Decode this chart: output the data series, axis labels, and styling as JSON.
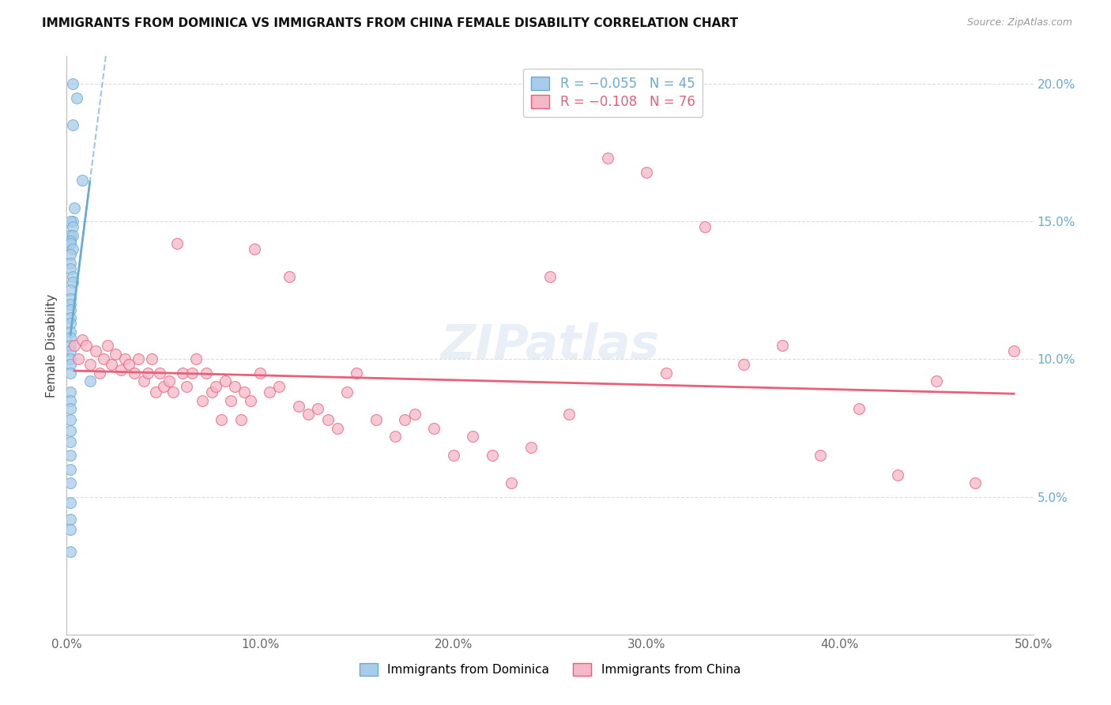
{
  "title": "IMMIGRANTS FROM DOMINICA VS IMMIGRANTS FROM CHINA FEMALE DISABILITY CORRELATION CHART",
  "source": "Source: ZipAtlas.com",
  "ylabel": "Female Disability",
  "xlim": [
    0.0,
    0.5
  ],
  "ylim": [
    0.0,
    0.21
  ],
  "xticks": [
    0.0,
    0.1,
    0.2,
    0.3,
    0.4,
    0.5
  ],
  "yticks": [
    0.05,
    0.1,
    0.15,
    0.2
  ],
  "xticklabels": [
    "0.0%",
    "10.0%",
    "20.0%",
    "30.0%",
    "40.0%",
    "50.0%"
  ],
  "yticklabels_right": [
    "5.0%",
    "10.0%",
    "15.0%",
    "20.0%"
  ],
  "legend_r1": "R = −0.055",
  "legend_n1": "N = 45",
  "legend_r2": "R = −0.108",
  "legend_n2": "N = 76",
  "color_dominica": "#a8ccea",
  "color_china": "#f4b8c8",
  "trendline_color_dominica": "#6aaad4",
  "trendline_color_china": "#e8607a",
  "background_color": "#ffffff",
  "grid_color": "#d8d8d8",
  "dominica_x": [
    0.003,
    0.005,
    0.003,
    0.008,
    0.004,
    0.003,
    0.002,
    0.003,
    0.002,
    0.003,
    0.002,
    0.002,
    0.003,
    0.002,
    0.002,
    0.002,
    0.003,
    0.003,
    0.002,
    0.002,
    0.002,
    0.002,
    0.002,
    0.002,
    0.002,
    0.002,
    0.002,
    0.002,
    0.002,
    0.002,
    0.002,
    0.012,
    0.002,
    0.002,
    0.002,
    0.002,
    0.002,
    0.002,
    0.002,
    0.002,
    0.002,
    0.002,
    0.002,
    0.002,
    0.002
  ],
  "dominica_y": [
    0.2,
    0.195,
    0.185,
    0.165,
    0.155,
    0.15,
    0.15,
    0.148,
    0.145,
    0.145,
    0.143,
    0.142,
    0.14,
    0.138,
    0.135,
    0.133,
    0.13,
    0.128,
    0.125,
    0.122,
    0.12,
    0.118,
    0.115,
    0.113,
    0.11,
    0.108,
    0.105,
    0.103,
    0.1,
    0.098,
    0.095,
    0.092,
    0.088,
    0.085,
    0.082,
    0.078,
    0.074,
    0.07,
    0.065,
    0.06,
    0.055,
    0.048,
    0.042,
    0.038,
    0.03
  ],
  "china_x": [
    0.004,
    0.006,
    0.008,
    0.01,
    0.012,
    0.015,
    0.017,
    0.019,
    0.021,
    0.023,
    0.025,
    0.028,
    0.03,
    0.032,
    0.035,
    0.037,
    0.04,
    0.042,
    0.044,
    0.046,
    0.048,
    0.05,
    0.053,
    0.055,
    0.057,
    0.06,
    0.062,
    0.065,
    0.067,
    0.07,
    0.072,
    0.075,
    0.077,
    0.08,
    0.082,
    0.085,
    0.087,
    0.09,
    0.092,
    0.095,
    0.097,
    0.1,
    0.105,
    0.11,
    0.115,
    0.12,
    0.125,
    0.13,
    0.135,
    0.14,
    0.145,
    0.15,
    0.16,
    0.17,
    0.175,
    0.18,
    0.19,
    0.2,
    0.21,
    0.22,
    0.23,
    0.24,
    0.25,
    0.26,
    0.28,
    0.3,
    0.31,
    0.33,
    0.35,
    0.37,
    0.39,
    0.41,
    0.43,
    0.45,
    0.47,
    0.49
  ],
  "china_y": [
    0.105,
    0.1,
    0.107,
    0.105,
    0.098,
    0.103,
    0.095,
    0.1,
    0.105,
    0.098,
    0.102,
    0.096,
    0.1,
    0.098,
    0.095,
    0.1,
    0.092,
    0.095,
    0.1,
    0.088,
    0.095,
    0.09,
    0.092,
    0.088,
    0.142,
    0.095,
    0.09,
    0.095,
    0.1,
    0.085,
    0.095,
    0.088,
    0.09,
    0.078,
    0.092,
    0.085,
    0.09,
    0.078,
    0.088,
    0.085,
    0.14,
    0.095,
    0.088,
    0.09,
    0.13,
    0.083,
    0.08,
    0.082,
    0.078,
    0.075,
    0.088,
    0.095,
    0.078,
    0.072,
    0.078,
    0.08,
    0.075,
    0.065,
    0.072,
    0.065,
    0.055,
    0.068,
    0.13,
    0.08,
    0.173,
    0.168,
    0.095,
    0.148,
    0.098,
    0.105,
    0.065,
    0.082,
    0.058,
    0.092,
    0.055,
    0.103
  ]
}
